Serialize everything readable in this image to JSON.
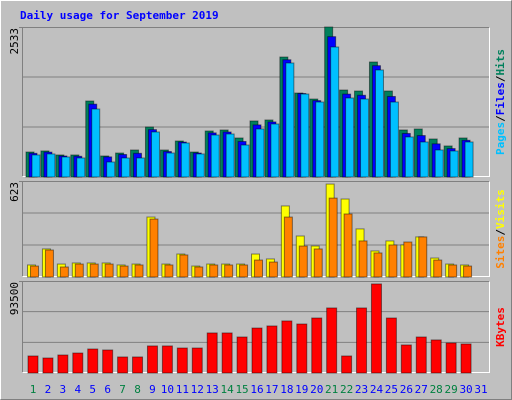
{
  "chart_data": [
    {
      "type": "bar",
      "title": "Daily usage for September 2019",
      "categories": [
        "1",
        "2",
        "3",
        "4",
        "5",
        "6",
        "7",
        "8",
        "9",
        "10",
        "11",
        "12",
        "13",
        "14",
        "15",
        "16",
        "17",
        "18",
        "19",
        "20",
        "21",
        "22",
        "23",
        "24",
        "25",
        "26",
        "27",
        "28",
        "29",
        "30",
        "31"
      ],
      "category_colors": [
        "#008040",
        "#0000ff",
        "#0000ff",
        "#0000ff",
        "#0000ff",
        "#0000ff",
        "#008040",
        "#008040",
        "#0000ff",
        "#0000ff",
        "#0000ff",
        "#0000ff",
        "#0000ff",
        "#008040",
        "#008040",
        "#0000ff",
        "#0000ff",
        "#0000ff",
        "#0000ff",
        "#0000ff",
        "#008040",
        "#008040",
        "#0000ff",
        "#0000ff",
        "#0000ff",
        "#0000ff",
        "#0000ff",
        "#008040",
        "#008040",
        "#0000ff",
        "#0000ff"
      ],
      "series": [
        {
          "name": "Hits",
          "color": "#00805c",
          "values": [
            422,
            440,
            372,
            372,
            1283,
            355,
            405,
            456,
            844,
            456,
            608,
            422,
            777,
            794,
            659,
            946,
            963,
            2026,
            1418,
            1317,
            2533,
            1469,
            1452,
            1942,
            1452,
            794,
            811,
            642,
            524,
            659,
            null
          ]
        },
        {
          "name": "Files",
          "color": "#0000ff",
          "values": [
            400,
            420,
            355,
            350,
            1230,
            340,
            380,
            400,
            800,
            430,
            590,
            405,
            745,
            760,
            600,
            880,
            930,
            1980,
            1410,
            1290,
            2370,
            1400,
            1380,
            1880,
            1360,
            735,
            700,
            560,
            480,
            620,
            null
          ]
        },
        {
          "name": "Pages",
          "color": "#00c0ff",
          "values": [
            372,
            389,
            338,
            321,
            1148,
            253,
            321,
            321,
            760,
            405,
            574,
            389,
            709,
            726,
            540,
            811,
            895,
            1925,
            1401,
            1266,
            2195,
            1334,
            1317,
            1807,
            1266,
            676,
            591,
            456,
            439,
            591,
            null
          ]
        }
      ],
      "ylim": [
        0,
        2533
      ],
      "yticks": [
        2533
      ],
      "legend_separator": "/"
    },
    {
      "type": "bar",
      "series": [
        {
          "name": "Visits",
          "color": "#ffff00",
          "values": [
            78,
            182,
            84,
            91,
            91,
            91,
            78,
            84,
            389,
            84,
            149,
            71,
            84,
            84,
            84,
            149,
            117,
            461,
            266,
            201,
            603,
            506,
            312,
            169,
            234,
            208,
            260,
            123,
            84,
            78,
            null
          ]
        },
        {
          "name": "Sites",
          "color": "#ff8000",
          "values": [
            71,
            175,
            65,
            84,
            84,
            84,
            71,
            78,
            376,
            78,
            143,
            65,
            78,
            78,
            78,
            110,
            97,
            389,
            201,
            182,
            512,
            409,
            234,
            156,
            208,
            227,
            260,
            110,
            78,
            71,
            null
          ]
        }
      ],
      "ylim": [
        0,
        623
      ],
      "yticks": [
        623
      ],
      "legend_separator": "/"
    },
    {
      "type": "bar",
      "series": [
        {
          "name": "KBytes",
          "color": "#ff0000",
          "values": [
            17300,
            15250,
            18300,
            20300,
            24400,
            23400,
            16300,
            16300,
            27500,
            27500,
            25400,
            25400,
            40700,
            40700,
            36600,
            45700,
            47800,
            52900,
            49800,
            55900,
            66100,
            17300,
            66100,
            90500,
            55900,
            28500,
            36600,
            33600,
            30500,
            29500,
            null
          ]
        }
      ],
      "ylim": [
        0,
        93500
      ],
      "yticks": [
        93500
      ]
    }
  ]
}
